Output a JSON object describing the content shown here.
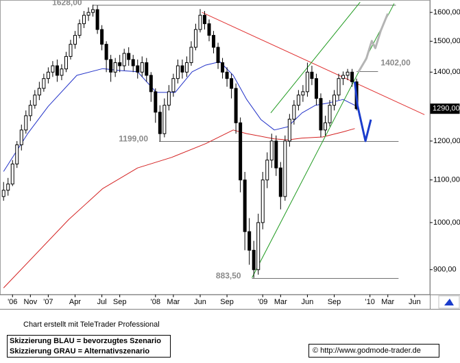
{
  "chart_data": {
    "type": "candlestick",
    "log_scale": true,
    "xlim": [
      -5.4,
      42.7
    ],
    "ylim": [
      854,
      1640
    ],
    "xticks": [
      {
        "value": -4,
        "label": "'06"
      },
      {
        "value": -2,
        "label": "Nov"
      },
      {
        "value": 0,
        "label": "'07"
      },
      {
        "value": 3,
        "label": "Apr"
      },
      {
        "value": 6,
        "label": "Jul"
      },
      {
        "value": 8,
        "label": "Sep"
      },
      {
        "value": 12,
        "label": "'08"
      },
      {
        "value": 14,
        "label": "Mar"
      },
      {
        "value": 17,
        "label": "Jun"
      },
      {
        "value": 20,
        "label": "Sep"
      },
      {
        "value": 24,
        "label": "'09"
      },
      {
        "value": 26,
        "label": "Mar"
      },
      {
        "value": 29,
        "label": "Jun"
      },
      {
        "value": 32,
        "label": "Sep"
      },
      {
        "value": 36,
        "label": "'10"
      },
      {
        "value": 38,
        "label": "Mar"
      },
      {
        "value": 41,
        "label": "Jun"
      }
    ],
    "yticks": [
      {
        "value": 900,
        "label": "900,00"
      },
      {
        "value": 1000,
        "label": "1000,00"
      },
      {
        "value": 1100,
        "label": "1100,00"
      },
      {
        "value": 1200,
        "label": "1200,00"
      },
      {
        "value": 1400,
        "label": "1400,00"
      },
      {
        "value": 1500,
        "label": "1500,00"
      },
      {
        "value": 1600,
        "label": "1600,00"
      }
    ],
    "up_color": "#ffffff",
    "down_color": "#000000",
    "x": [
      -5,
      -4.5,
      -4,
      -3.5,
      -3,
      -2.5,
      -2,
      -1.5,
      -1,
      -0.5,
      0,
      0.5,
      1,
      1.5,
      2,
      2.5,
      3,
      3.5,
      4,
      4.5,
      5,
      5.5,
      6,
      6.5,
      7,
      7.5,
      8,
      8.5,
      9,
      9.5,
      10,
      10.5,
      11,
      11.5,
      12,
      12.5,
      13,
      13.5,
      14,
      14.5,
      15,
      15.5,
      16,
      16.5,
      17,
      17.5,
      18,
      18.5,
      19,
      19.5,
      20,
      20.5,
      21,
      21.5,
      22,
      22.5,
      23,
      23.5,
      24,
      24.5,
      25,
      25.5,
      26,
      26.5,
      27,
      27.5,
      28,
      28.5,
      29,
      29.5,
      30,
      30.5,
      31,
      31.5,
      32,
      32.5,
      33,
      33.5,
      34,
      34.5
    ],
    "open": [
      1060,
      1075,
      1090,
      1140,
      1190,
      1230,
      1270,
      1300,
      1330,
      1350,
      1380,
      1400,
      1420,
      1390,
      1410,
      1450,
      1490,
      1520,
      1560,
      1590,
      1600,
      1610,
      1540,
      1490,
      1440,
      1400,
      1430,
      1420,
      1460,
      1440,
      1420,
      1400,
      1430,
      1390,
      1340,
      1280,
      1220,
      1300,
      1340,
      1380,
      1420,
      1400,
      1430,
      1480,
      1540,
      1590,
      1560,
      1520,
      1480,
      1430,
      1400,
      1380,
      1350,
      1250,
      1100,
      980,
      940,
      900,
      1000,
      1100,
      1150,
      1200,
      1130,
      1060,
      1200,
      1260,
      1300,
      1330,
      1340,
      1400,
      1380,
      1320,
      1230,
      1250,
      1300,
      1330,
      1380,
      1390,
      1400,
      1370
    ],
    "high": [
      1095,
      1105,
      1150,
      1200,
      1245,
      1285,
      1315,
      1345,
      1370,
      1395,
      1415,
      1435,
      1440,
      1425,
      1465,
      1505,
      1535,
      1575,
      1605,
      1618,
      1628,
      1625,
      1555,
      1500,
      1455,
      1445,
      1455,
      1475,
      1480,
      1455,
      1440,
      1450,
      1445,
      1400,
      1350,
      1300,
      1320,
      1360,
      1395,
      1440,
      1440,
      1450,
      1500,
      1560,
      1612,
      1605,
      1575,
      1535,
      1495,
      1445,
      1415,
      1395,
      1365,
      1265,
      1120,
      1010,
      960,
      1020,
      1120,
      1170,
      1220,
      1215,
      1145,
      1215,
      1275,
      1315,
      1345,
      1360,
      1430,
      1420,
      1395,
      1335,
      1270,
      1315,
      1345,
      1395,
      1402,
      1410,
      1410,
      1380
    ],
    "low": [
      1050,
      1062,
      1085,
      1130,
      1175,
      1220,
      1255,
      1290,
      1315,
      1340,
      1365,
      1385,
      1370,
      1375,
      1400,
      1440,
      1475,
      1510,
      1545,
      1570,
      1585,
      1525,
      1470,
      1400,
      1370,
      1385,
      1400,
      1405,
      1420,
      1400,
      1380,
      1385,
      1370,
      1310,
      1250,
      1199,
      1210,
      1285,
      1325,
      1365,
      1380,
      1385,
      1420,
      1470,
      1530,
      1540,
      1500,
      1460,
      1410,
      1380,
      1355,
      1320,
      1220,
      1070,
      940,
      910,
      883.5,
      890,
      985,
      1080,
      1130,
      1110,
      1030,
      1050,
      1185,
      1245,
      1285,
      1310,
      1325,
      1360,
      1300,
      1210,
      1215,
      1240,
      1285,
      1315,
      1360,
      1375,
      1355,
      1285
    ],
    "close": [
      1075,
      1090,
      1140,
      1190,
      1230,
      1270,
      1300,
      1330,
      1350,
      1380,
      1400,
      1420,
      1390,
      1410,
      1450,
      1490,
      1520,
      1560,
      1590,
      1600,
      1610,
      1540,
      1490,
      1440,
      1400,
      1430,
      1420,
      1460,
      1440,
      1420,
      1400,
      1430,
      1390,
      1340,
      1280,
      1220,
      1300,
      1340,
      1380,
      1420,
      1400,
      1430,
      1480,
      1540,
      1590,
      1560,
      1520,
      1480,
      1430,
      1400,
      1380,
      1350,
      1250,
      1100,
      980,
      940,
      900,
      1000,
      1100,
      1150,
      1200,
      1130,
      1060,
      1200,
      1260,
      1300,
      1330,
      1340,
      1400,
      1380,
      1320,
      1230,
      1250,
      1300,
      1330,
      1380,
      1390,
      1400,
      1370,
      1290
    ],
    "overlays": [
      {
        "color": "#d42020",
        "width": 1,
        "x": [
          -5,
          2.3,
          6.1,
          10,
          13.8,
          17.6,
          20.7,
          22.2,
          25.3,
          26.8,
          28.4,
          30.7,
          33,
          34.3
        ],
        "values": [
          864,
          1007,
          1079,
          1130,
          1157,
          1193,
          1230,
          1220,
          1206,
          1203,
          1208,
          1211,
          1225,
          1234
        ]
      },
      {
        "color": "#2030c8",
        "width": 1,
        "x": [
          -5,
          -2.3,
          0,
          3.2,
          6.1,
          8.1,
          10,
          12.1,
          14.2,
          16.1,
          17.6,
          19.2,
          20.7,
          22.2,
          23.8,
          25.3,
          26.8,
          28.4,
          29.9,
          31.4,
          33,
          34.3
        ],
        "values": [
          1121,
          1220,
          1297,
          1390,
          1411,
          1405,
          1401,
          1338,
          1338,
          1401,
          1422,
          1433,
          1390,
          1317,
          1259,
          1230,
          1239,
          1278,
          1300,
          1307,
          1317,
          1300
        ]
      },
      {
        "color": "#e03030",
        "width": 1,
        "x": [
          17.2,
          42.1
        ],
        "values": [
          1600,
          1273
        ]
      },
      {
        "color": "#1f9a1f",
        "width": 1,
        "x": [
          22.8,
          38.7
        ],
        "values": [
          884,
          1632
        ]
      },
      {
        "color": "#1f9a1f",
        "width": 1,
        "x": [
          24.9,
          34.9
        ],
        "values": [
          1278,
          1637
        ]
      },
      {
        "color": "#b4b4b4",
        "width": 3,
        "x": [
          34.7,
          35.6,
          36.2,
          36.6,
          37.2,
          38
        ],
        "values": [
          1400,
          1443,
          1501,
          1477,
          1535,
          1596
        ]
      },
      {
        "color": "#1a3ccc",
        "width": 3,
        "x": [
          34.3,
          34.6,
          35.5,
          36.1
        ],
        "values": [
          1370,
          1300,
          1200,
          1259
        ]
      }
    ],
    "levels": [
      {
        "value": 1628,
        "label": "1628,00",
        "xlim": [
          5,
          38.9
        ],
        "label_position": "left"
      },
      {
        "value": 1199,
        "label": "1199,00",
        "xlim": [
          12.4,
          39.2
        ],
        "label_position": "left"
      },
      {
        "value": 883.5,
        "label": "883,50",
        "xlim": [
          22.8,
          39.2
        ],
        "label_position": "left"
      },
      {
        "value": 1402,
        "label": "1402,00",
        "xlim": [
          34.5,
          36.9
        ],
        "label_position": "right"
      }
    ],
    "last_price": {
      "value": 1290,
      "label": "1290,00"
    }
  },
  "footer": {
    "credit": "Chart erstellt mit TeleTrader Professional",
    "legend": [
      "Skizzierung BLAU = bevorzugtes Szenario",
      "Skizzierung GRAU = Alternativszenario"
    ],
    "copyright": "© http://www.godmode-trader.de"
  }
}
